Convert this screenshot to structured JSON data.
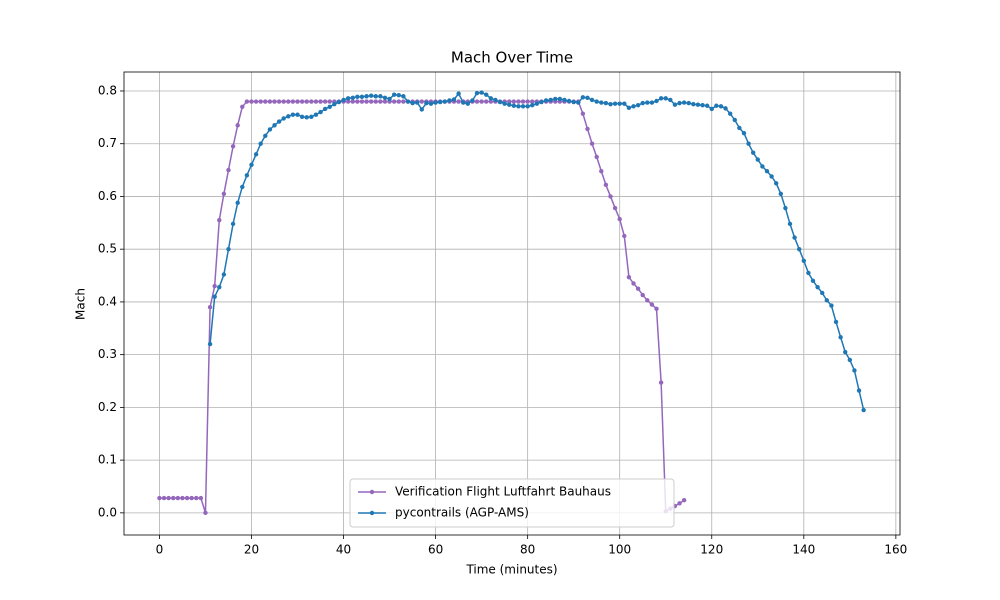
{
  "chart_data": {
    "type": "line",
    "title": "Mach Over Time",
    "x_label": "Time (minutes)",
    "y_label": "Mach",
    "xlim": [
      -7.7,
      160.9
    ],
    "ylim": [
      -0.042,
      0.836
    ],
    "xticks": [
      0,
      20,
      40,
      60,
      80,
      100,
      120,
      140,
      160
    ],
    "yticks": [
      {
        "value": 0,
        "label": "0.0"
      },
      0.1,
      0.2,
      0.3,
      0.4,
      0.5,
      0.6,
      0.7,
      0.8
    ],
    "grid": true,
    "legend": "lower center",
    "series": [
      {
        "name": "Verification Flight Luftfahrt Bauhaus",
        "color": "#9467bd",
        "x": [
          0,
          1,
          2,
          3,
          4,
          5,
          6,
          7,
          8,
          9,
          10,
          11,
          12,
          13,
          14,
          15,
          16,
          17,
          18,
          19,
          20,
          21,
          22,
          23,
          24,
          25,
          26,
          27,
          28,
          29,
          30,
          31,
          32,
          33,
          34,
          35,
          36,
          37,
          38,
          39,
          40,
          41,
          42,
          43,
          44,
          45,
          46,
          47,
          48,
          49,
          50,
          51,
          52,
          53,
          54,
          55,
          56,
          57,
          58,
          59,
          60,
          61,
          62,
          63,
          64,
          65,
          66,
          67,
          68,
          69,
          70,
          71,
          72,
          73,
          74,
          75,
          76,
          77,
          78,
          79,
          80,
          81,
          82,
          83,
          84,
          85,
          86,
          87,
          88,
          89,
          90,
          91,
          92,
          93,
          94,
          95,
          96,
          97,
          98,
          99,
          100,
          101,
          102,
          103,
          104,
          105,
          106,
          107,
          108,
          109,
          110,
          111,
          112,
          113,
          114
        ],
        "values": [
          0.028,
          0.028,
          0.028,
          0.028,
          0.028,
          0.028,
          0.028,
          0.028,
          0.028,
          0.028,
          0,
          0.39,
          0.43,
          0.555,
          0.605,
          0.65,
          0.695,
          0.735,
          0.77,
          0.78,
          0.78,
          0.78,
          0.78,
          0.78,
          0.78,
          0.78,
          0.78,
          0.78,
          0.78,
          0.78,
          0.78,
          0.78,
          0.78,
          0.78,
          0.78,
          0.78,
          0.78,
          0.78,
          0.78,
          0.78,
          0.78,
          0.78,
          0.78,
          0.78,
          0.78,
          0.78,
          0.78,
          0.78,
          0.78,
          0.78,
          0.78,
          0.78,
          0.78,
          0.78,
          0.78,
          0.78,
          0.78,
          0.78,
          0.78,
          0.78,
          0.78,
          0.78,
          0.78,
          0.78,
          0.78,
          0.78,
          0.78,
          0.78,
          0.78,
          0.78,
          0.78,
          0.78,
          0.78,
          0.78,
          0.78,
          0.78,
          0.78,
          0.78,
          0.78,
          0.78,
          0.78,
          0.78,
          0.78,
          0.78,
          0.78,
          0.78,
          0.78,
          0.78,
          0.78,
          0.78,
          0.78,
          0.78,
          0.757,
          0.728,
          0.7,
          0.675,
          0.648,
          0.622,
          0.6,
          0.578,
          0.557,
          0.525,
          0.447,
          0.435,
          0.425,
          0.413,
          0.403,
          0.395,
          0.387,
          0.247,
          0.003,
          0.008,
          0.013,
          0.018,
          0.024
        ]
      },
      {
        "name": "pycontrails (AGP-AMS)",
        "color": "#1f77b4",
        "x": [
          11,
          12,
          13,
          14,
          15,
          16,
          17,
          18,
          19,
          20,
          21,
          22,
          23,
          24,
          25,
          26,
          27,
          28,
          29,
          30,
          31,
          32,
          33,
          34,
          35,
          36,
          37,
          38,
          39,
          40,
          41,
          42,
          43,
          44,
          45,
          46,
          47,
          48,
          49,
          50,
          51,
          52,
          53,
          54,
          55,
          56,
          57,
          58,
          59,
          60,
          61,
          62,
          63,
          64,
          65,
          66,
          67,
          68,
          69,
          70,
          71,
          72,
          73,
          74,
          75,
          76,
          77,
          78,
          79,
          80,
          81,
          82,
          83,
          84,
          85,
          86,
          87,
          88,
          89,
          90,
          91,
          92,
          93,
          94,
          95,
          96,
          97,
          98,
          99,
          100,
          101,
          102,
          103,
          104,
          105,
          106,
          107,
          108,
          109,
          110,
          111,
          112,
          113,
          114,
          115,
          116,
          117,
          118,
          119,
          120,
          121,
          122,
          123,
          124,
          125,
          126,
          127,
          128,
          129,
          130,
          131,
          132,
          133,
          134,
          135,
          136,
          137,
          138,
          139,
          140,
          141,
          142,
          143,
          144,
          145,
          146,
          147,
          148,
          149,
          150,
          151,
          152,
          153
        ],
        "values": [
          0.32,
          0.41,
          0.428,
          0.452,
          0.5,
          0.548,
          0.588,
          0.618,
          0.64,
          0.66,
          0.68,
          0.7,
          0.715,
          0.727,
          0.735,
          0.742,
          0.748,
          0.752,
          0.755,
          0.755,
          0.751,
          0.75,
          0.751,
          0.755,
          0.76,
          0.766,
          0.77,
          0.775,
          0.779,
          0.783,
          0.786,
          0.787,
          0.789,
          0.789,
          0.79,
          0.791,
          0.79,
          0.79,
          0.787,
          0.785,
          0.793,
          0.792,
          0.79,
          0.78,
          0.777,
          0.778,
          0.765,
          0.777,
          0.776,
          0.778,
          0.779,
          0.78,
          0.782,
          0.784,
          0.795,
          0.778,
          0.776,
          0.782,
          0.796,
          0.797,
          0.793,
          0.786,
          0.783,
          0.779,
          0.776,
          0.774,
          0.772,
          0.771,
          0.771,
          0.771,
          0.773,
          0.776,
          0.779,
          0.782,
          0.783,
          0.785,
          0.785,
          0.783,
          0.781,
          0.779,
          0.778,
          0.788,
          0.787,
          0.783,
          0.78,
          0.778,
          0.777,
          0.775,
          0.776,
          0.776,
          0.776,
          0.768,
          0.771,
          0.773,
          0.777,
          0.778,
          0.778,
          0.781,
          0.786,
          0.786,
          0.783,
          0.774,
          0.777,
          0.778,
          0.777,
          0.775,
          0.774,
          0.773,
          0.772,
          0.766,
          0.772,
          0.771,
          0.767,
          0.757,
          0.745,
          0.73,
          0.72,
          0.7,
          0.683,
          0.67,
          0.657,
          0.648,
          0.638,
          0.625,
          0.605,
          0.578,
          0.548,
          0.522,
          0.5,
          0.478,
          0.455,
          0.44,
          0.428,
          0.417,
          0.403,
          0.393,
          0.362,
          0.333,
          0.305,
          0.29,
          0.27,
          0.232,
          0.195
        ]
      }
    ]
  }
}
